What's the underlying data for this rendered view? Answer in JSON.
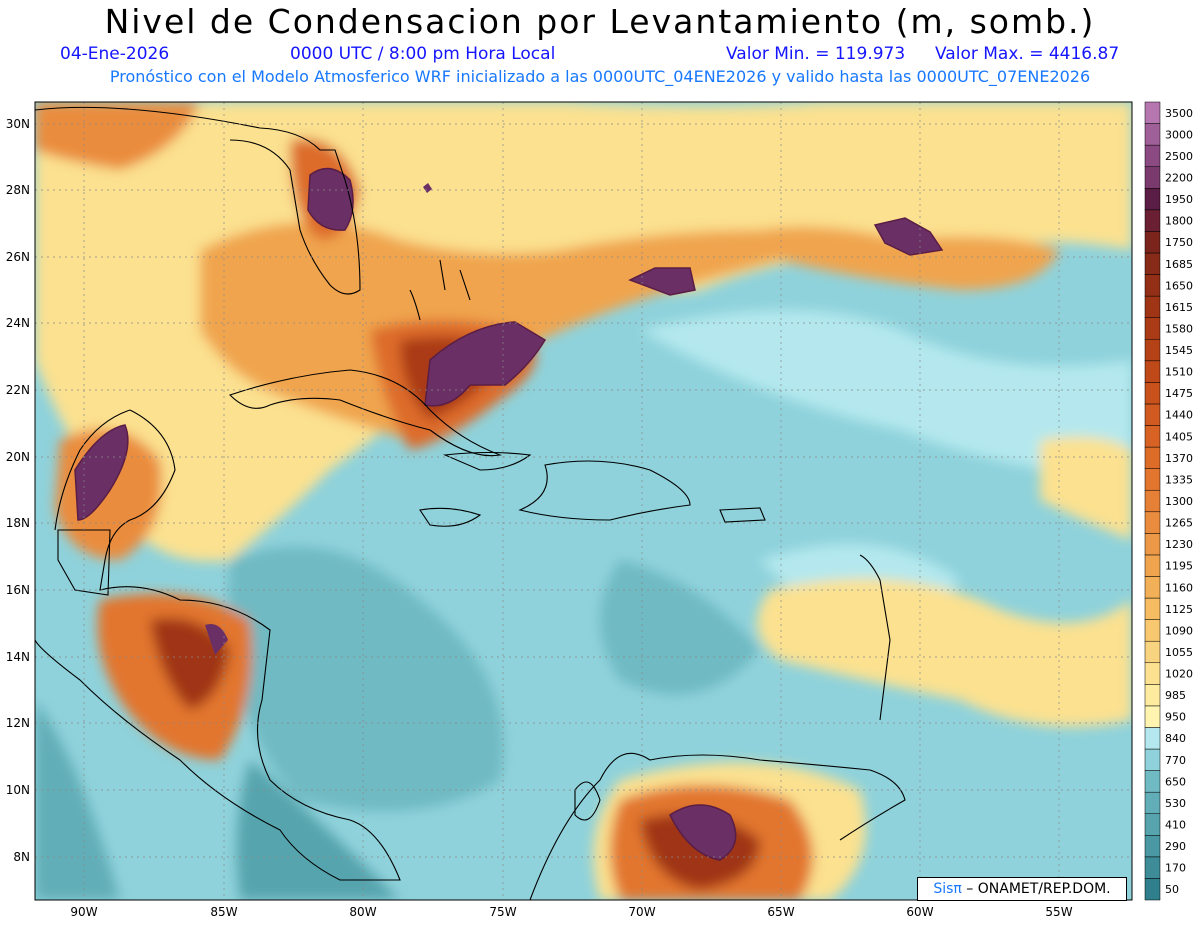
{
  "header": {
    "title": "Nivel de Condensacion por Levantamiento (m, somb.)",
    "date": "04-Ene-2026",
    "time": "0000 UTC / 8:00 pm Hora Local",
    "min_label": "Valor Min. = 119.973",
    "max_label": "Valor Max. = 4416.87",
    "forecast": "Pronóstico con el Modelo Atmosferico WRF inicializado a las 0000UTC_04ENE2026 y valido hasta las  0000UTC_07ENE2026"
  },
  "axes": {
    "lon_labels": [
      "90W",
      "85W",
      "80W",
      "75W",
      "70W",
      "65W",
      "60W",
      "55W"
    ],
    "lat_labels": [
      "8N",
      "10N",
      "12N",
      "14N",
      "16N",
      "18N",
      "20N",
      "22N",
      "24N",
      "26N",
      "28N",
      "30N"
    ]
  },
  "legend": {
    "levels": [
      "50",
      "170",
      "290",
      "410",
      "530",
      "650",
      "770",
      "840",
      "950",
      "985",
      "1020",
      "1055",
      "1090",
      "1125",
      "1160",
      "1195",
      "1230",
      "1265",
      "1300",
      "1335",
      "1370",
      "1405",
      "1440",
      "1475",
      "1510",
      "1545",
      "1580",
      "1615",
      "1650",
      "1685",
      "1750",
      "1800",
      "1950",
      "2200",
      "2500",
      "3000",
      "3500"
    ],
    "colors": [
      "#2f7f8c",
      "#3d8c98",
      "#4a98a3",
      "#57a4ae",
      "#62aeb8",
      "#6fbac3",
      "#8fd2db",
      "#b4e8ee",
      "#fff5b0",
      "#fdeba0",
      "#fbe190",
      "#f9d480",
      "#f7c870",
      "#f5bc62",
      "#f2b058",
      "#f0a44e",
      "#ed9846",
      "#ea8c3e",
      "#e68036",
      "#e2762f",
      "#dd6c29",
      "#d76224",
      "#d05a20",
      "#c8511c",
      "#bf4919",
      "#b54217",
      "#aa3b16",
      "#9f3515",
      "#932f16",
      "#872a18",
      "#7a241c",
      "#6a1f32",
      "#5a1d45",
      "#7a3a6e",
      "#8c4a82",
      "#9f5f98",
      "#b677b0"
    ],
    "credit_pi": "Sisπ",
    "credit_org": " – ONAMET/REP.DOM."
  },
  "colors": {
    "base": "#8fd2db",
    "deep": "#62aeb8",
    "light": "#b4e8ee",
    "yellow": "#fbe190",
    "orange": "#ea8c3e",
    "brown": "#aa3b16",
    "purple": "#6a3066"
  }
}
